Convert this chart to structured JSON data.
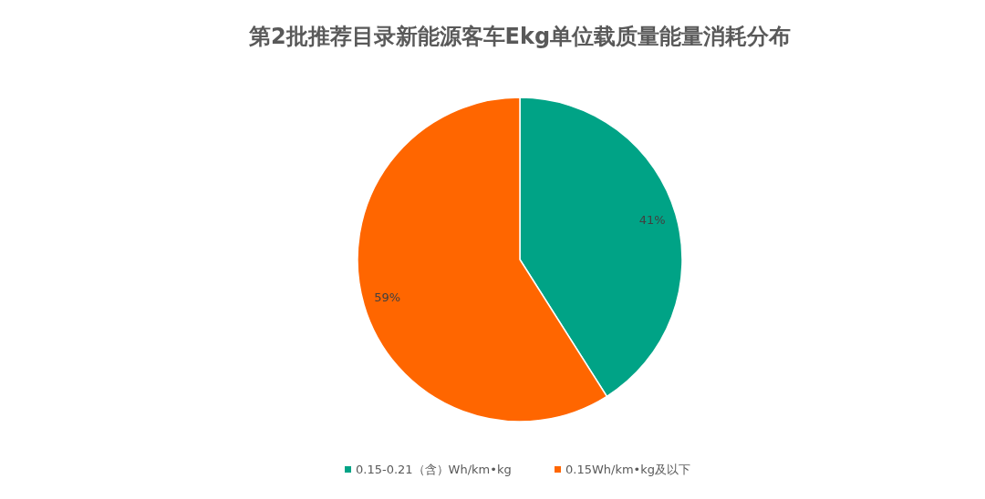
{
  "chart_data": {
    "type": "pie",
    "title": "第2批推荐目录新能源客车Ekg单位载质量能量消耗分布",
    "categories": [
      "0.15-0.21（含）Wh/km•kg",
      "0.15Wh/km•kg及以下"
    ],
    "values": [
      41,
      59
    ],
    "colors": [
      "#00a386",
      "#ff6600"
    ],
    "value_labels": [
      "41%",
      "59%"
    ],
    "legend": "bottom"
  }
}
